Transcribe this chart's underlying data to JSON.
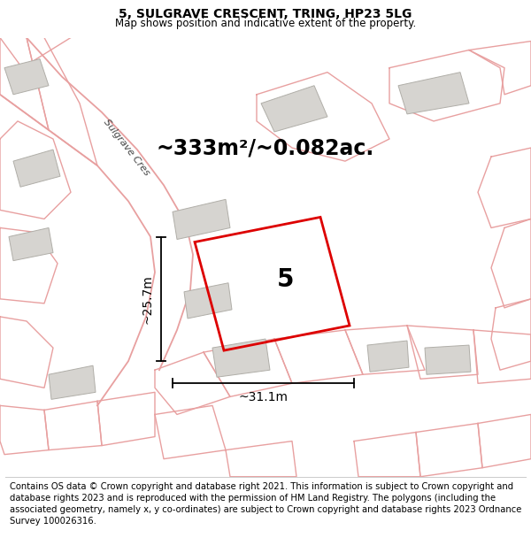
{
  "title": "5, SULGRAVE CRESCENT, TRING, HP23 5LG",
  "subtitle": "Map shows position and indicative extent of the property.",
  "area_label": "~333m²/~0.082ac.",
  "number_label": "5",
  "dim_h": "~25.7m",
  "dim_w": "~31.1m",
  "street_label": "Sulgrave Cres",
  "footer": "Contains OS data © Crown copyright and database right 2021. This information is subject to Crown copyright and database rights 2023 and is reproduced with the permission of HM Land Registry. The polygons (including the associated geometry, namely x, y co-ordinates) are subject to Crown copyright and database rights 2023 Ordnance Survey 100026316.",
  "map_bg": "#f0eeeb",
  "building_color": "#d6d4d0",
  "building_edge": "#b0aea8",
  "plot_outline_color": "#dd0000",
  "bg_outline_color": "#e8a0a0",
  "title_fontsize": 10,
  "subtitle_fontsize": 8.5,
  "area_fontsize": 17,
  "number_fontsize": 20,
  "dim_fontsize": 10,
  "footer_fontsize": 7.2,
  "street_fontsize": 8
}
